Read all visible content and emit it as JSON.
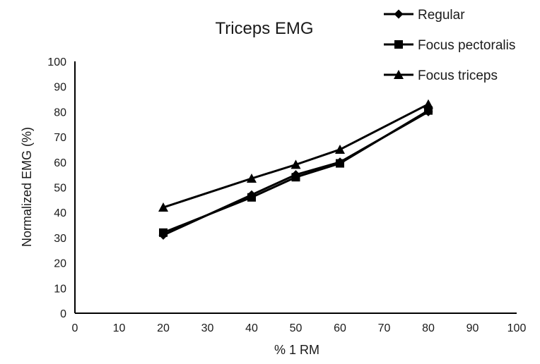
{
  "chart_data": {
    "type": "line",
    "title": "Triceps EMG",
    "xlabel": "% 1 RM",
    "ylabel": "Normalized EMG (%)",
    "xlim": [
      0,
      100
    ],
    "ylim": [
      0,
      100
    ],
    "xticks": [
      0,
      10,
      20,
      30,
      40,
      50,
      60,
      70,
      80,
      90,
      100
    ],
    "yticks": [
      0,
      10,
      20,
      30,
      40,
      50,
      60,
      70,
      80,
      90,
      100
    ],
    "grid": false,
    "legend_position": "top-right",
    "line_color": "#000000",
    "series": [
      {
        "name": "Regular",
        "marker": "diamond",
        "x": [
          20,
          40,
          50,
          60,
          80
        ],
        "y": [
          31,
          47,
          55,
          60,
          80
        ]
      },
      {
        "name": "Focus pectoralis",
        "marker": "square",
        "x": [
          20,
          40,
          50,
          60,
          80
        ],
        "y": [
          32,
          46,
          54,
          59.5,
          80.5
        ]
      },
      {
        "name": "Focus triceps",
        "marker": "triangle",
        "x": [
          20,
          40,
          50,
          60,
          80
        ],
        "y": [
          42,
          53.5,
          59,
          65,
          83
        ]
      }
    ]
  }
}
